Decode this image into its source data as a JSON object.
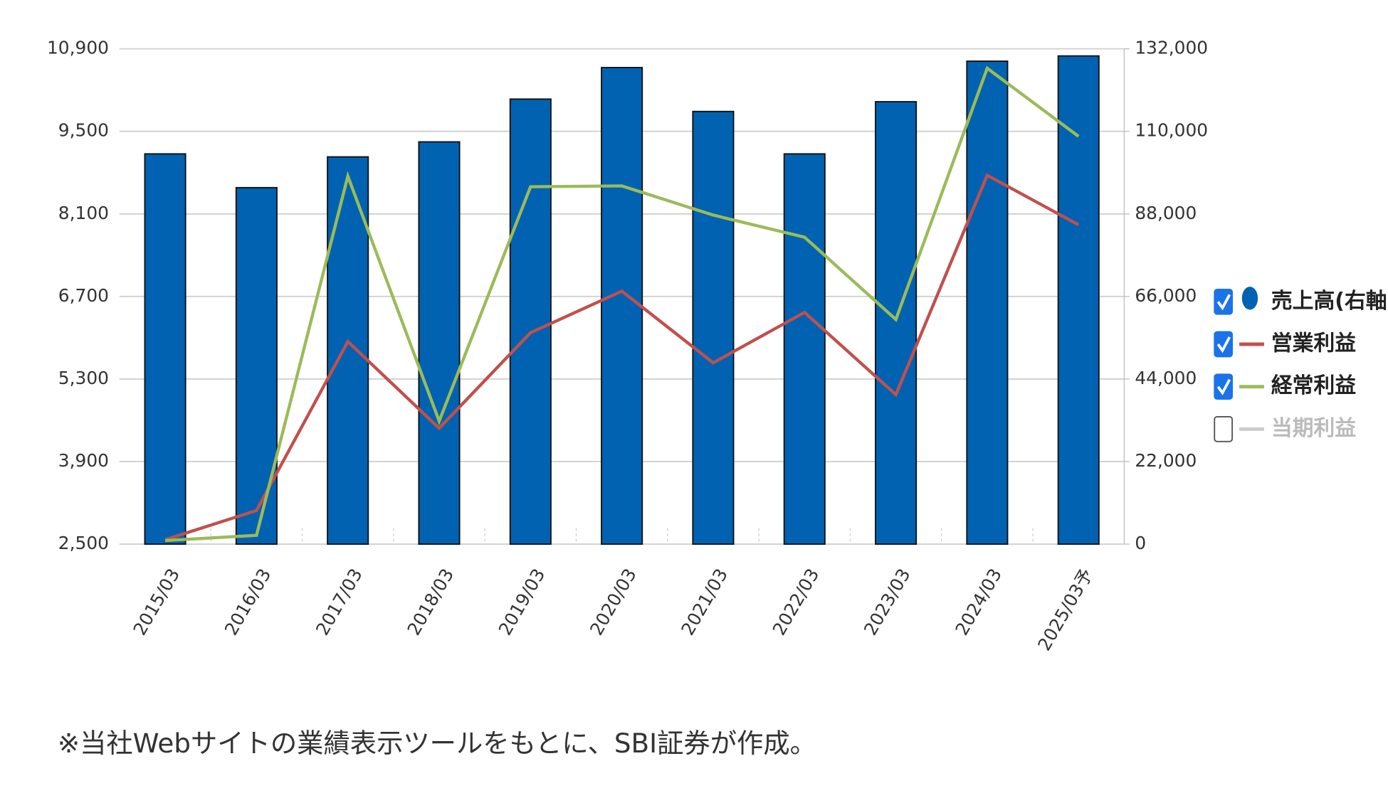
{
  "chart_data": {
    "type": "bar-line",
    "categories": [
      "2015/03",
      "2016/03",
      "2017/03",
      "2018/03",
      "2019/03",
      "2020/03",
      "2021/03",
      "2022/03",
      "2023/03",
      "2024/03",
      "2025/03予"
    ],
    "series": [
      {
        "name": "売上高(右軸)",
        "color": "#0062b0",
        "type": "bar",
        "axis": "y2",
        "visible": true,
        "values": [
          104000,
          95000,
          103200,
          107200,
          118600,
          127000,
          115300,
          104000,
          117900,
          128700,
          130100
        ]
      },
      {
        "name": "営業利益",
        "color": "#c0504d",
        "type": "line",
        "visible": true,
        "values": [
          2575,
          3070,
          5935,
          4465,
          6085,
          6790,
          5575,
          6430,
          5035,
          8755,
          7915
        ]
      },
      {
        "name": "経常利益",
        "color": "#9bbb59",
        "type": "line",
        "visible": true,
        "values": [
          2560,
          2650,
          8740,
          4585,
          8560,
          8575,
          8080,
          7705,
          6310,
          10570,
          9415
        ]
      },
      {
        "name": "当期利益",
        "color": "#cccccc",
        "type": "line",
        "visible": false,
        "values": [
          null,
          null,
          null,
          null,
          null,
          null,
          null,
          null,
          null,
          null,
          null
        ]
      }
    ],
    "ylim": [
      2500,
      10900
    ],
    "yticks": [
      {
        "value": 2500,
        "label": "2,500"
      },
      {
        "value": 3900,
        "label": "3,900"
      },
      {
        "value": 5300,
        "label": "5,300"
      },
      {
        "value": 6700,
        "label": "6,700"
      },
      {
        "value": 8100,
        "label": "8,100"
      },
      {
        "value": 9500,
        "label": "9,500"
      },
      {
        "value": 10900,
        "label": "10,900"
      }
    ],
    "y2lim": [
      0,
      132000
    ],
    "y2ticks": [
      0,
      {
        "value": 22000,
        "label": "22,000"
      },
      {
        "value": 44000,
        "label": "44,000"
      },
      {
        "value": 66000,
        "label": "66,000"
      },
      {
        "value": 88000,
        "label": "88,000"
      },
      {
        "value": 110000,
        "label": "110,000"
      },
      {
        "value": 132000,
        "label": "132,000"
      }
    ],
    "grid": true,
    "legend": "right"
  },
  "note": "※当社Webサイトの業績表示ツールをもとに、SBI証券が作成。"
}
